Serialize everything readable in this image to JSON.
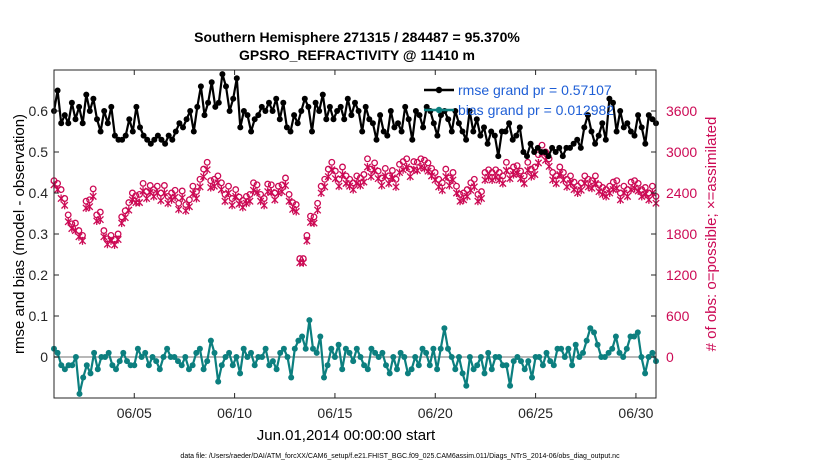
{
  "chart_data": {
    "type": "line",
    "title_line1": "Southern Hemisphere 271315 / 284487 = 95.370%",
    "title_line2": "GPSRO_REFRACTIVITY @ 11410 m",
    "xlabel": "Jun.01,2014 00:00:00 start",
    "ylabel_left": "rmse and bias (model - observation)",
    "ylabel_right": "# of obs: o=possible; ×=assimilated",
    "footnote": "data file: /Users/raeder/DAI/ATM_forcXX/CAM6_setup/f.e21.FHIST_BGC.f09_025.CAM6assim.011/Diags_NTrS_2014-06/obs_diag_output.nc",
    "x_range_days": [
      1.0,
      31.0
    ],
    "x_ticks": [
      {
        "day": 5,
        "label": "06/05"
      },
      {
        "day": 10,
        "label": "06/10"
      },
      {
        "day": 15,
        "label": "06/15"
      },
      {
        "day": 20,
        "label": "06/20"
      },
      {
        "day": 25,
        "label": "06/25"
      },
      {
        "day": 30,
        "label": "06/30"
      }
    ],
    "ylim_left": [
      -0.1,
      0.7
    ],
    "y_ticks_left": [
      "0",
      "0.1",
      "0.2",
      "0.3",
      "0.4",
      "0.5",
      "0.6"
    ],
    "ylim_right": [
      -600,
      4200
    ],
    "y_ticks_right": [
      "0",
      "600",
      "1200",
      "1800",
      "2400",
      "3000",
      "3600"
    ],
    "legend": [
      {
        "label": "rmse grand pr = 0.57107",
        "color": "#000000"
      },
      {
        "label": "bias grand pr = 0.012982",
        "color": "#0c7f7f"
      }
    ],
    "colors": {
      "rmse": "#000000",
      "bias": "#0c7f7f",
      "obs": "#cc0a55",
      "zero_line": "#b8b8b8"
    },
    "series": [
      {
        "name": "rmse",
        "axis": "left",
        "values": [
          0.6,
          0.65,
          0.57,
          0.59,
          0.57,
          0.62,
          0.58,
          0.61,
          0.57,
          0.64,
          0.6,
          0.63,
          0.58,
          0.55,
          0.6,
          0.57,
          0.61,
          0.54,
          0.53,
          0.53,
          0.54,
          0.58,
          0.55,
          0.61,
          0.56,
          0.54,
          0.53,
          0.52,
          0.53,
          0.54,
          0.53,
          0.52,
          0.54,
          0.53,
          0.55,
          0.57,
          0.56,
          0.58,
          0.6,
          0.55,
          0.61,
          0.66,
          0.59,
          0.62,
          0.67,
          0.61,
          0.62,
          0.69,
          0.66,
          0.6,
          0.63,
          0.68,
          0.56,
          0.6,
          0.59,
          0.55,
          0.58,
          0.59,
          0.61,
          0.6,
          0.62,
          0.6,
          0.63,
          0.58,
          0.62,
          0.56,
          0.55,
          0.59,
          0.57,
          0.6,
          0.63,
          0.61,
          0.55,
          0.62,
          0.6,
          0.64,
          0.58,
          0.61,
          0.58,
          0.6,
          0.61,
          0.58,
          0.63,
          0.59,
          0.62,
          0.6,
          0.55,
          0.61,
          0.58,
          0.57,
          0.53,
          0.59,
          0.55,
          0.54,
          0.6,
          0.56,
          0.57,
          0.55,
          0.61,
          0.58,
          0.53,
          0.6,
          0.59,
          0.56,
          0.61,
          0.6,
          0.57,
          0.54,
          0.59,
          0.6,
          0.58,
          0.55,
          0.6,
          0.57,
          0.55,
          0.53,
          0.6,
          0.55,
          0.58,
          0.54,
          0.56,
          0.52,
          0.55,
          0.54,
          0.49,
          0.55,
          0.55,
          0.57,
          0.53,
          0.54,
          0.56,
          0.5,
          0.49,
          0.52,
          0.5,
          0.51,
          0.5,
          0.5,
          0.49,
          0.51,
          0.5,
          0.51,
          0.49,
          0.51,
          0.51,
          0.52,
          0.53,
          0.51,
          0.56,
          0.59,
          0.55,
          0.52,
          0.54,
          0.57,
          0.53,
          0.63,
          0.62,
          0.55,
          0.6,
          0.56,
          0.57,
          0.55,
          0.54,
          0.59,
          0.56,
          0.52,
          0.59,
          0.58,
          0.57
        ]
      },
      {
        "name": "bias",
        "axis": "left",
        "values": [
          0.02,
          0.01,
          -0.02,
          -0.03,
          -0.02,
          -0.02,
          0.0,
          -0.09,
          -0.05,
          -0.02,
          -0.04,
          0.01,
          -0.03,
          0.0,
          0.0,
          0.01,
          -0.02,
          -0.03,
          -0.01,
          0.01,
          -0.01,
          -0.02,
          -0.02,
          0.02,
          0.0,
          0.01,
          -0.02,
          0.0,
          -0.01,
          -0.03,
          0.0,
          0.02,
          0.0,
          0.0,
          -0.01,
          -0.02,
          0.0,
          -0.03,
          -0.02,
          0.01,
          0.02,
          -0.03,
          -0.01,
          0.04,
          0.01,
          -0.06,
          -0.02,
          0.0,
          0.01,
          -0.02,
          0.0,
          -0.04,
          0.02,
          0.0,
          0.01,
          -0.02,
          0.0,
          0.0,
          0.02,
          -0.02,
          -0.01,
          -0.03,
          0.01,
          0.02,
          0.0,
          -0.05,
          0.02,
          0.04,
          0.05,
          0.02,
          0.09,
          0.02,
          0.01,
          0.05,
          -0.05,
          -0.02,
          0.02,
          0.0,
          0.03,
          -0.03,
          0.02,
          0.01,
          -0.01,
          0.02,
          0.0,
          -0.02,
          -0.03,
          0.02,
          0.01,
          0.0,
          0.01,
          -0.02,
          -0.04,
          0.0,
          -0.03,
          0.01,
          0.0,
          -0.04,
          -0.03,
          0.0,
          -0.02,
          0.02,
          0.01,
          -0.02,
          0.02,
          -0.03,
          0.02,
          0.07,
          0.02,
          0.0,
          -0.03,
          0.0,
          -0.04,
          -0.07,
          0.0,
          -0.03,
          -0.02,
          0.0,
          -0.04,
          0.01,
          -0.03,
          0.0,
          0.0,
          -0.02,
          -0.02,
          -0.07,
          -0.01,
          0.0,
          -0.01,
          -0.03,
          -0.01,
          -0.05,
          0.0,
          0.0,
          -0.02,
          0.01,
          -0.01,
          -0.02,
          0.02,
          0.02,
          0.0,
          0.02,
          -0.02,
          0.03,
          0.0,
          0.01,
          0.04,
          0.07,
          0.06,
          0.03,
          0.0,
          0.0,
          0.01,
          0.02,
          0.05,
          0.01,
          0.0,
          0.02,
          0.05,
          0.05,
          0.06,
          0.0,
          -0.04,
          0.0,
          0.01,
          -0.01
        ]
      },
      {
        "name": "possible",
        "axis": "right",
        "marker": "o",
        "values": [
          2580,
          2540,
          2450,
          2320,
          2080,
          1950,
          1960,
          1850,
          1780,
          2280,
          2300,
          2460,
          2080,
          2120,
          1850,
          1730,
          1780,
          1720,
          1800,
          2050,
          2140,
          2260,
          2400,
          2360,
          2380,
          2540,
          2420,
          2510,
          2450,
          2500,
          2400,
          2510,
          2350,
          2400,
          2440,
          2250,
          2430,
          2230,
          2300,
          2500,
          2420,
          2600,
          2750,
          2850,
          2580,
          2600,
          2650,
          2550,
          2380,
          2500,
          2320,
          2450,
          2340,
          2290,
          2350,
          2380,
          2550,
          2520,
          2380,
          2320,
          2530,
          2520,
          2400,
          2500,
          2520,
          2620,
          2380,
          2260,
          2230,
          1440,
          1440,
          1780,
          2060,
          2050,
          2250,
          2500,
          2600,
          2750,
          2850,
          2720,
          2600,
          2780,
          2650,
          2600,
          2550,
          2650,
          2620,
          2670,
          2900,
          2750,
          2840,
          2720,
          2620,
          2760,
          2650,
          2730,
          2600,
          2820,
          2860,
          2900,
          2750,
          2860,
          2850,
          2900,
          2880,
          2840,
          2760,
          2700,
          2600,
          2550,
          2750,
          2620,
          2700,
          2500,
          2380,
          2400,
          2450,
          2550,
          2600,
          2380,
          2420,
          2700,
          2740,
          2700,
          2740,
          2700,
          2650,
          2850,
          2720,
          2780,
          2800,
          2720,
          2650,
          2850,
          2750,
          2780,
          2960,
          3100,
          3000,
          2900,
          2700,
          2650,
          2780,
          2700,
          2600,
          2650,
          2560,
          2500,
          2550,
          2650,
          2600,
          2580,
          2650,
          2520,
          2480,
          2450,
          2500,
          2560,
          2580,
          2400,
          2500,
          2450,
          2560,
          2580,
          2540,
          2450,
          2480,
          2400,
          2500,
          2350
        ]
      },
      {
        "name": "assimilated",
        "axis": "right",
        "marker": "x",
        "values": [
          2520,
          2450,
          2320,
          2220,
          1980,
          1880,
          1850,
          1760,
          1700,
          2180,
          2200,
          2350,
          1990,
          2010,
          1760,
          1650,
          1700,
          1640,
          1720,
          1960,
          2040,
          2150,
          2300,
          2260,
          2260,
          2430,
          2320,
          2410,
          2350,
          2400,
          2290,
          2400,
          2250,
          2300,
          2340,
          2160,
          2330,
          2140,
          2200,
          2390,
          2320,
          2490,
          2640,
          2740,
          2480,
          2500,
          2550,
          2450,
          2280,
          2400,
          2220,
          2350,
          2240,
          2190,
          2250,
          2280,
          2440,
          2410,
          2280,
          2220,
          2420,
          2410,
          2300,
          2400,
          2420,
          2510,
          2280,
          2160,
          2130,
          1380,
          1380,
          1700,
          1970,
          1960,
          2150,
          2400,
          2490,
          2640,
          2740,
          2610,
          2500,
          2670,
          2540,
          2500,
          2450,
          2540,
          2510,
          2560,
          2780,
          2640,
          2730,
          2610,
          2510,
          2650,
          2540,
          2620,
          2490,
          2700,
          2740,
          2780,
          2640,
          2740,
          2730,
          2780,
          2760,
          2720,
          2650,
          2590,
          2490,
          2440,
          2640,
          2510,
          2590,
          2400,
          2280,
          2300,
          2350,
          2440,
          2490,
          2280,
          2320,
          2590,
          2630,
          2590,
          2630,
          2590,
          2540,
          2730,
          2610,
          2670,
          2690,
          2610,
          2540,
          2730,
          2640,
          2670,
          2840,
          2980,
          2880,
          2790,
          2590,
          2540,
          2670,
          2590,
          2490,
          2540,
          2450,
          2400,
          2440,
          2540,
          2490,
          2470,
          2540,
          2420,
          2380,
          2350,
          2400,
          2450,
          2470,
          2300,
          2400,
          2350,
          2450,
          2470,
          2430,
          2350,
          2380,
          2300,
          2400,
          2250
        ]
      }
    ]
  }
}
